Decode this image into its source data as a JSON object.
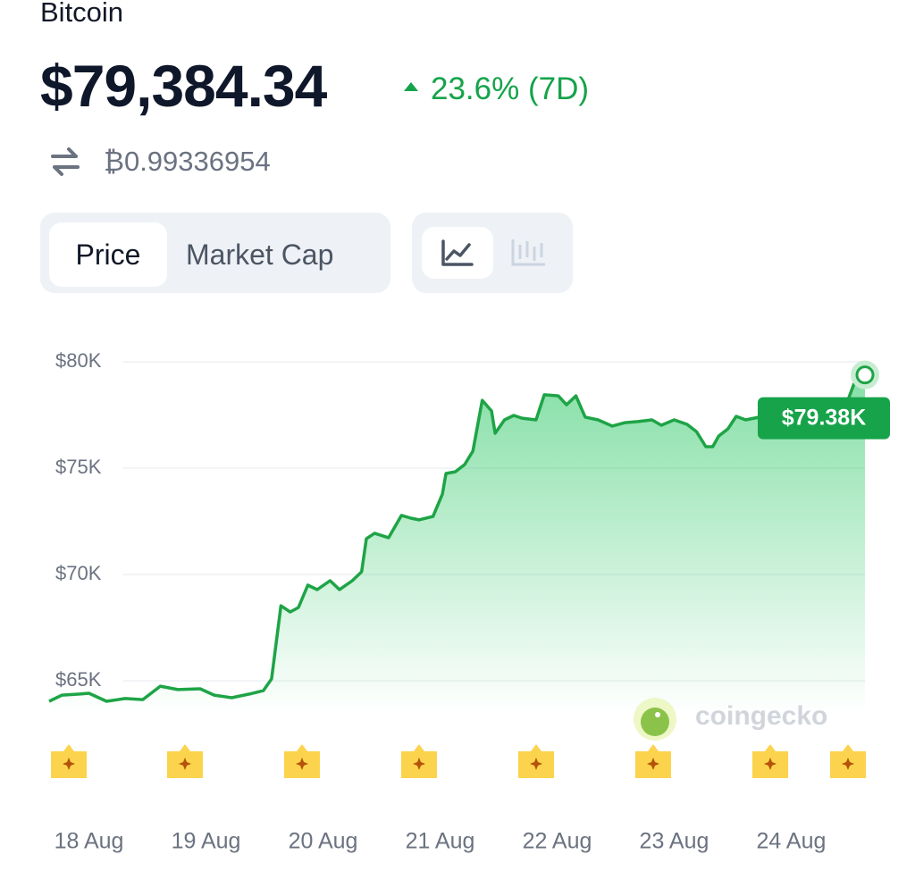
{
  "header": {
    "coin": "Bitcoin",
    "price": "$79,384.34",
    "change": "23.6% (7D)",
    "btc_price": "₿0.99336954"
  },
  "tabs": [
    "Price",
    "Market Cap"
  ],
  "watermark": "coingecko",
  "chart_data": {
    "type": "line",
    "color": "#1ea446",
    "x": [
      -0.34,
      -0.23,
      -0.08,
      0,
      0.15,
      0.31,
      0.46,
      0.61,
      0.76,
      0.95,
      1.07,
      1.22,
      1.37,
      1.49,
      1.56,
      1.64,
      1.72,
      1.79,
      1.87,
      1.95,
      2.06,
      2.14,
      2.25,
      2.33,
      2.37,
      2.44,
      2.56,
      2.67,
      2.75,
      2.82,
      2.94,
      3.02,
      3.05,
      3.13,
      3.21,
      3.28,
      3.36,
      3.44,
      3.47,
      3.55,
      3.63,
      3.7,
      3.82,
      3.89,
      4.01,
      4.08,
      4.16,
      4.24,
      4.35,
      4.47,
      4.58,
      4.69,
      4.81,
      4.89,
      5.0,
      5.11,
      5.19,
      5.27,
      5.33,
      5.38,
      5.46,
      5.53,
      5.61,
      5.73,
      5.8,
      6.11,
      6.45,
      6.55,
      6.63
    ],
    "values": [
      64040,
      64330,
      64380,
      64420,
      64040,
      64170,
      64120,
      64750,
      64590,
      64630,
      64330,
      64210,
      64380,
      64540,
      65090,
      68530,
      68240,
      68450,
      69500,
      69290,
      69710,
      69290,
      69710,
      70130,
      71680,
      71940,
      71730,
      72780,
      72650,
      72570,
      72730,
      73780,
      74750,
      74830,
      75170,
      75800,
      78190,
      77690,
      76640,
      77270,
      77480,
      77350,
      77270,
      78450,
      78400,
      77980,
      78400,
      77400,
      77270,
      76980,
      77140,
      77190,
      77270,
      77020,
      77270,
      77060,
      76720,
      76010,
      76010,
      76510,
      76850,
      77440,
      77270,
      77400,
      77560,
      77610,
      77690,
      79160,
      79384.34
    ],
    "annotation": "$79.38K",
    "xlim": [
      -0.34,
      6.63
    ],
    "xticks": [
      {
        "value": 0,
        "label": "18 Aug"
      },
      {
        "value": 1,
        "label": "19 Aug"
      },
      {
        "value": 2,
        "label": "20 Aug"
      },
      {
        "value": 3,
        "label": "21 Aug"
      },
      {
        "value": 4,
        "label": "22 Aug"
      },
      {
        "value": 5,
        "label": "23 Aug"
      },
      {
        "value": 6,
        "label": "24 Aug"
      }
    ],
    "ylim": [
      63410,
      80000
    ],
    "yticks": [
      {
        "value": 65000,
        "label": "$65K"
      },
      {
        "value": 70000,
        "label": "$70K"
      },
      {
        "value": 75000,
        "label": "$75K"
      },
      {
        "value": 80000,
        "label": "$80K"
      }
    ],
    "grid": true
  }
}
